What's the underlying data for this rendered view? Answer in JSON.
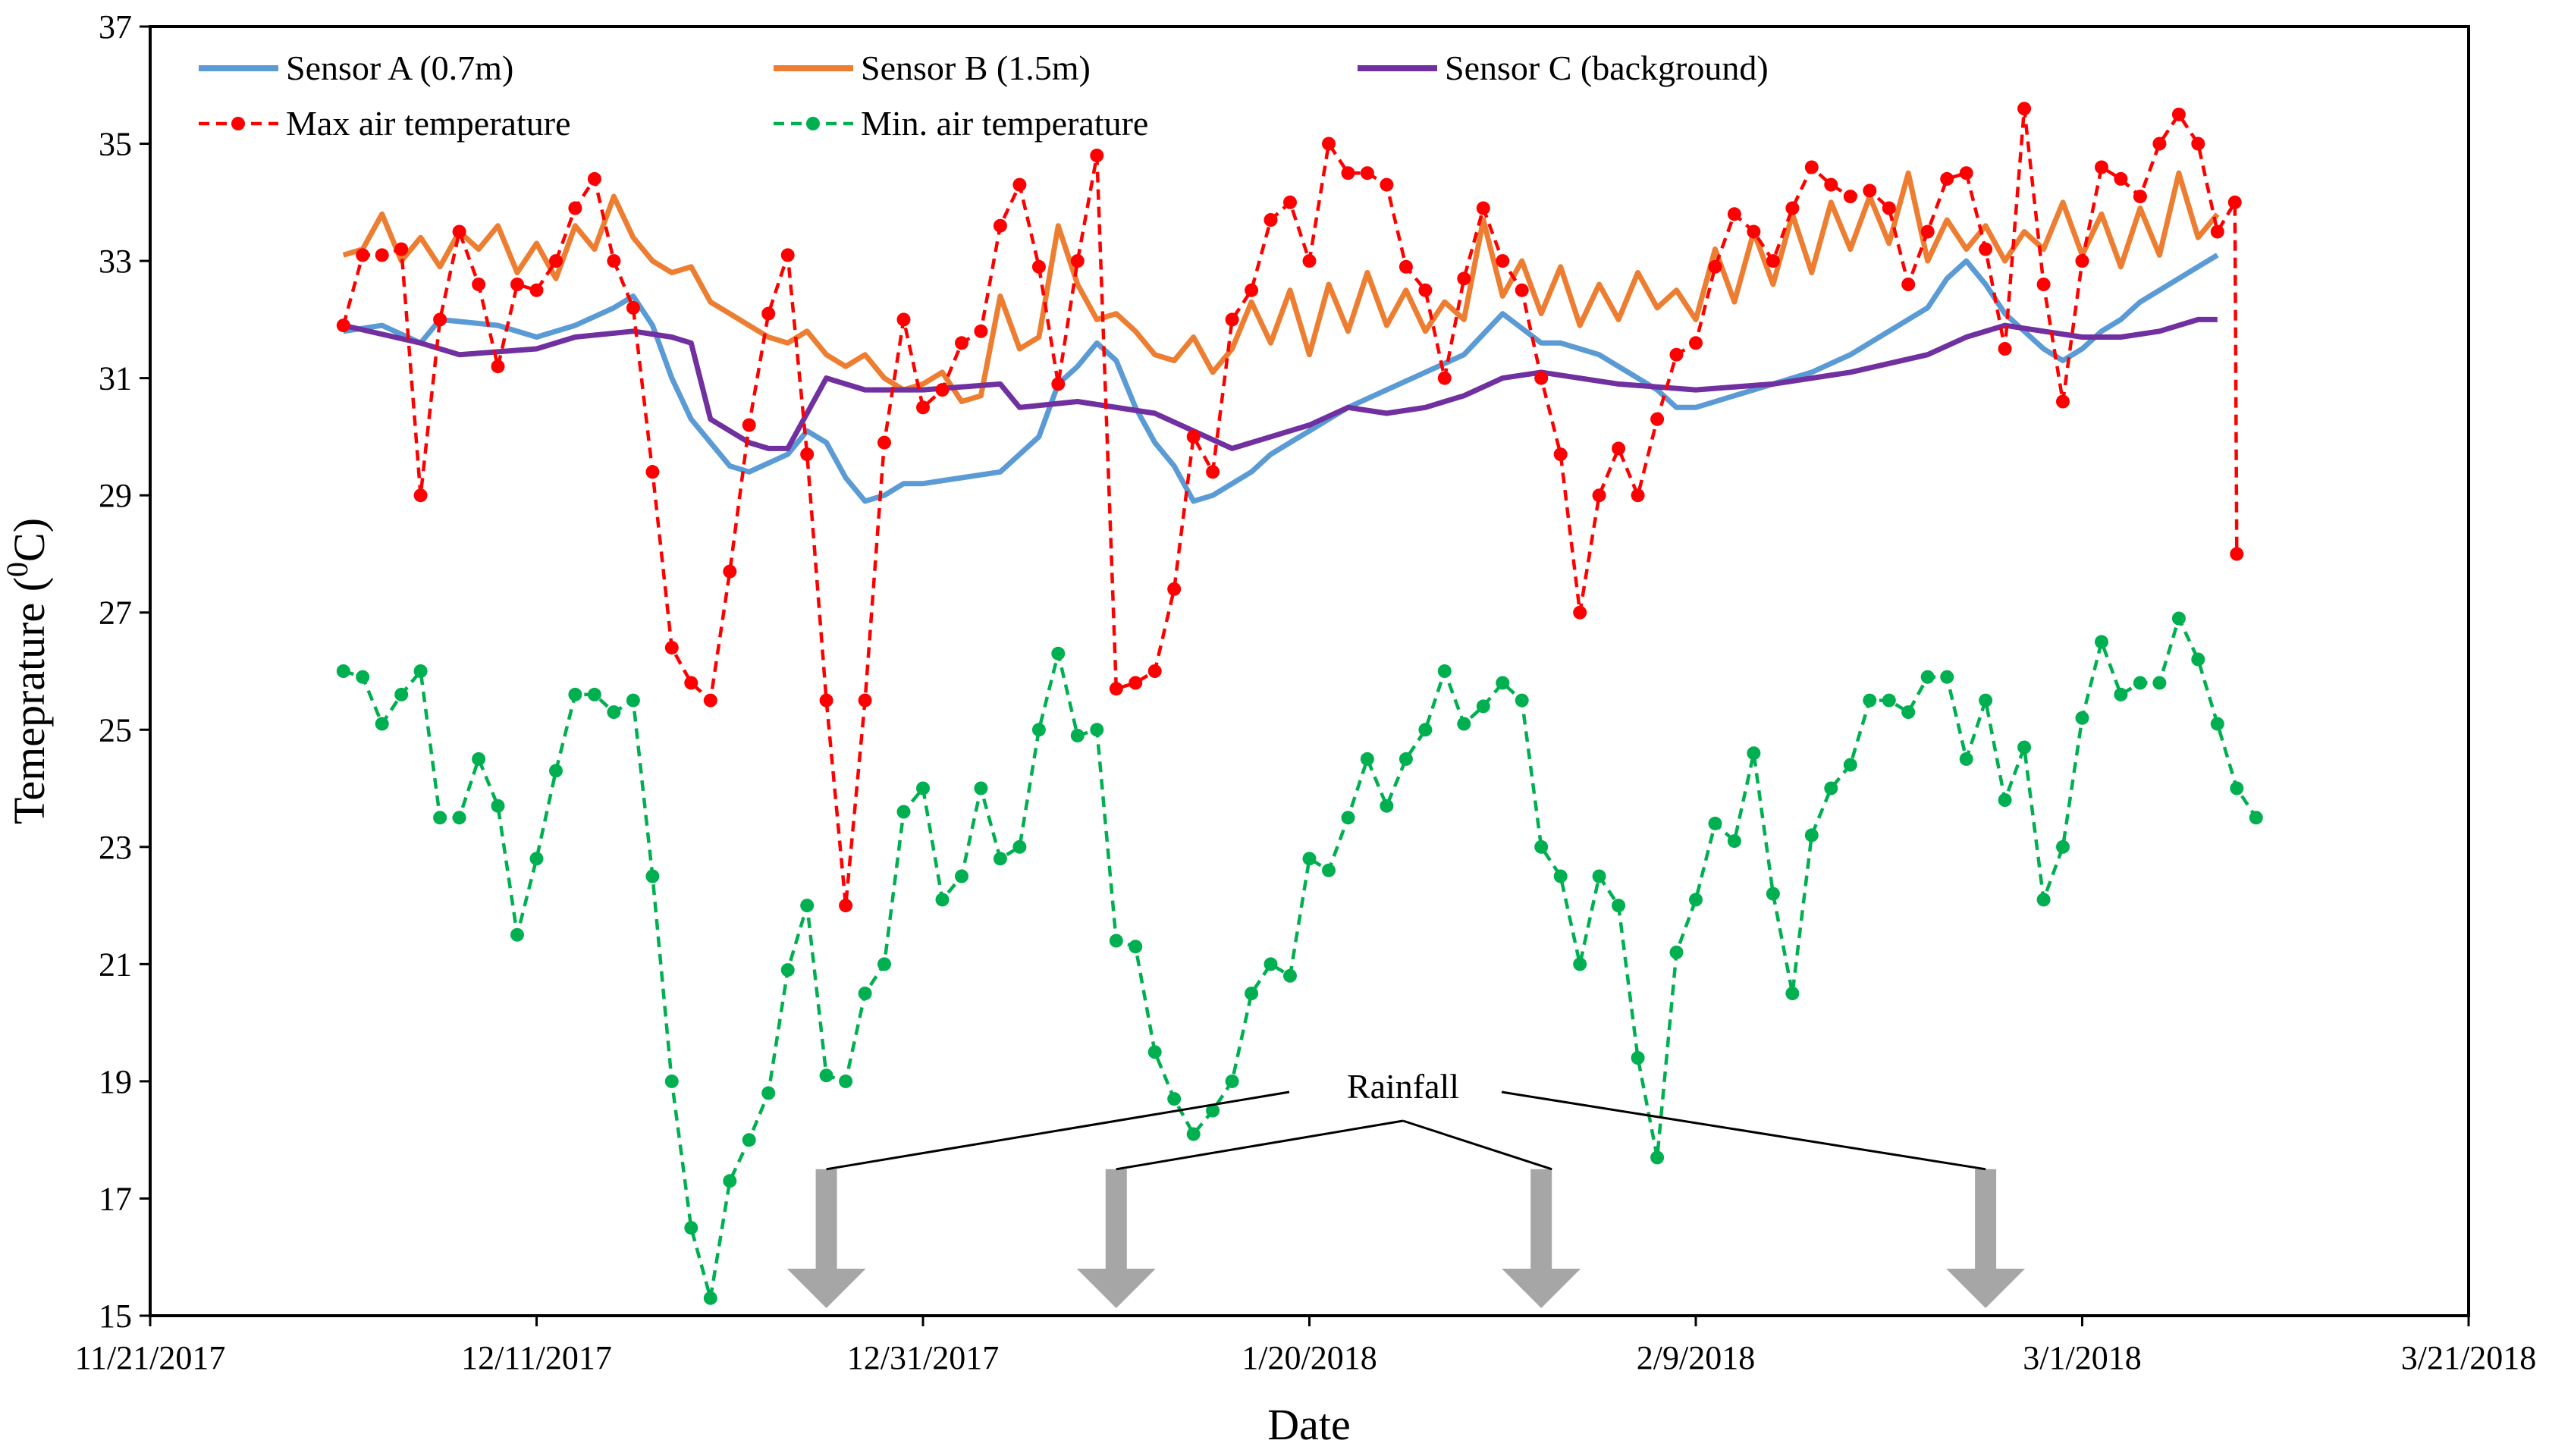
{
  "chart_data": {
    "type": "line",
    "title": "",
    "xlabel": "Date",
    "ylabel": "Temeprature (",
    "ylabel_sup": "0",
    "ylabel_tail": "C)",
    "xlim": [
      0,
      120
    ],
    "ylim": [
      15,
      37
    ],
    "x_ticks": [
      {
        "x": 0,
        "label": "11/21/2017"
      },
      {
        "x": 20,
        "label": "12/11/2017"
      },
      {
        "x": 40,
        "label": "12/31/2017"
      },
      {
        "x": 60,
        "label": "1/20/2018"
      },
      {
        "x": 80,
        "label": "2/9/2018"
      },
      {
        "x": 100,
        "label": "3/1/2018"
      },
      {
        "x": 120,
        "label": "3/21/2018"
      }
    ],
    "y_ticks": [
      15,
      17,
      19,
      21,
      23,
      25,
      27,
      29,
      31,
      33,
      35,
      37
    ],
    "grid": false,
    "legend": {
      "placement": "top-left"
    },
    "series": [
      {
        "name": "Sensor A (0.7m)",
        "color": "#5B9BD5",
        "style": "solid",
        "x": [
          10,
          12,
          14,
          15,
          18,
          20,
          22,
          24,
          25,
          26,
          27,
          28,
          29,
          30,
          31,
          33,
          34,
          35,
          36,
          37,
          38,
          39,
          40,
          42,
          44,
          46,
          47,
          48,
          49,
          50,
          51,
          52,
          53,
          54,
          55,
          56,
          57,
          58,
          59,
          60,
          62,
          64,
          66,
          68,
          70,
          72,
          73,
          74,
          75,
          76,
          77,
          78,
          79,
          80,
          82,
          84,
          86,
          88,
          90,
          92,
          93,
          94,
          95,
          96,
          97,
          98,
          99,
          100,
          101,
          102,
          103,
          104,
          105,
          106,
          107
        ],
        "values": [
          31.8,
          31.9,
          31.6,
          32.0,
          31.9,
          31.7,
          31.9,
          32.2,
          32.4,
          31.9,
          31.0,
          30.3,
          29.9,
          29.5,
          29.4,
          29.7,
          30.1,
          29.9,
          29.3,
          28.9,
          29.0,
          29.2,
          29.2,
          29.3,
          29.4,
          30.0,
          30.9,
          31.2,
          31.6,
          31.3,
          30.5,
          29.9,
          29.5,
          28.9,
          29.0,
          29.2,
          29.4,
          29.7,
          29.9,
          30.1,
          30.5,
          30.8,
          31.1,
          31.4,
          32.1,
          31.6,
          31.6,
          31.5,
          31.4,
          31.2,
          31.0,
          30.8,
          30.5,
          30.5,
          30.7,
          30.9,
          31.1,
          31.4,
          31.8,
          32.2,
          32.7,
          33.0,
          32.6,
          32.1,
          31.8,
          31.5,
          31.3,
          31.5,
          31.8,
          32.0,
          32.3,
          32.5,
          32.7,
          32.9,
          33.1
        ]
      },
      {
        "name": "Sensor B (1.5m)",
        "color": "#ED7D31",
        "style": "solid",
        "x": [
          10,
          11,
          12,
          13,
          14,
          15,
          16,
          17,
          18,
          19,
          20,
          21,
          22,
          23,
          24,
          25,
          26,
          27,
          28,
          29,
          30,
          31,
          32,
          33,
          34,
          35,
          36,
          37,
          38,
          39,
          40,
          41,
          42,
          43,
          44,
          45,
          46,
          47,
          48,
          49,
          50,
          51,
          52,
          53,
          54,
          55,
          56,
          57,
          58,
          59,
          60,
          61,
          62,
          63,
          64,
          65,
          66,
          67,
          68,
          69,
          70,
          71,
          72,
          73,
          74,
          75,
          76,
          77,
          78,
          79,
          80,
          81,
          82,
          83,
          84,
          85,
          86,
          87,
          88,
          89,
          90,
          91,
          92,
          93,
          94,
          95,
          96,
          97,
          98,
          99,
          100,
          101,
          102,
          103,
          104,
          105,
          106,
          107
        ],
        "values": [
          33.1,
          33.2,
          33.8,
          33.0,
          33.4,
          32.9,
          33.5,
          33.2,
          33.6,
          32.8,
          33.3,
          32.7,
          33.6,
          33.2,
          34.1,
          33.4,
          33.0,
          32.8,
          32.9,
          32.3,
          32.1,
          31.9,
          31.7,
          31.6,
          31.8,
          31.4,
          31.2,
          31.4,
          31.0,
          30.8,
          30.9,
          31.1,
          30.6,
          30.7,
          32.4,
          31.5,
          31.7,
          33.6,
          32.6,
          32.0,
          32.1,
          31.8,
          31.4,
          31.3,
          31.7,
          31.1,
          31.5,
          32.3,
          31.6,
          32.5,
          31.4,
          32.6,
          31.8,
          32.8,
          31.9,
          32.5,
          31.8,
          32.3,
          32.0,
          33.7,
          32.4,
          33.0,
          32.1,
          32.9,
          31.9,
          32.6,
          32.0,
          32.8,
          32.2,
          32.5,
          32.0,
          33.2,
          32.3,
          33.5,
          32.6,
          33.8,
          32.8,
          34.0,
          33.2,
          34.1,
          33.3,
          34.5,
          33.0,
          33.7,
          33.2,
          33.6,
          33.0,
          33.5,
          33.2,
          34.0,
          33.1,
          33.8,
          32.9,
          33.9,
          33.1,
          34.5,
          33.4,
          33.8
        ]
      },
      {
        "name": "Sensor C (background)",
        "color": "#7030A0",
        "style": "solid",
        "x": [
          10,
          14,
          16,
          20,
          22,
          25,
          27,
          28,
          29,
          31,
          32,
          33,
          35,
          37,
          40,
          44,
          45,
          48,
          52,
          56,
          60,
          62,
          64,
          66,
          68,
          70,
          72,
          76,
          80,
          84,
          88,
          92,
          94,
          96,
          98,
          100,
          102,
          104,
          106,
          107
        ],
        "values": [
          31.9,
          31.6,
          31.4,
          31.5,
          31.7,
          31.8,
          31.7,
          31.6,
          30.3,
          29.9,
          29.8,
          29.8,
          31.0,
          30.8,
          30.8,
          30.9,
          30.5,
          30.6,
          30.4,
          29.8,
          30.2,
          30.5,
          30.4,
          30.5,
          30.7,
          31.0,
          31.1,
          30.9,
          30.8,
          30.9,
          31.1,
          31.4,
          31.7,
          31.9,
          31.8,
          31.7,
          31.7,
          31.8,
          32.0,
          32.0
        ]
      },
      {
        "name": "Max air temperature",
        "color": "#FF0000",
        "style": "dashed-markers",
        "x": [
          10,
          11,
          12,
          13,
          14,
          15,
          16,
          17,
          18,
          19,
          20,
          21,
          22,
          23,
          24,
          25,
          26,
          27,
          28,
          29,
          30,
          31,
          32,
          33,
          34,
          35,
          36,
          37,
          38,
          39,
          40,
          41,
          42,
          43,
          44,
          45,
          46,
          47,
          48,
          49,
          50,
          51,
          52,
          53,
          54,
          55,
          56,
          57,
          58,
          59,
          60,
          61,
          62,
          63,
          64,
          65,
          66,
          67,
          68,
          69,
          70,
          71,
          72,
          73,
          74,
          75,
          76,
          77,
          78,
          79,
          80,
          81,
          82,
          83,
          84,
          85,
          86,
          87,
          88,
          89,
          90,
          91,
          92,
          93,
          94,
          95,
          96,
          97,
          98,
          99,
          100,
          101,
          102,
          103,
          104,
          105,
          106,
          107,
          108
        ],
        "values": [
          31.9,
          33.1,
          33.1,
          33.2,
          29.0,
          32.0,
          33.5,
          32.6,
          31.2,
          32.6,
          32.5,
          33.0,
          33.9,
          34.4,
          33.0,
          32.2,
          29.4,
          26.4,
          25.8,
          25.5,
          27.7,
          30.2,
          32.1,
          33.1,
          29.7,
          25.5,
          22.0,
          25.5,
          29.9,
          32.0,
          30.5,
          30.8,
          31.6,
          31.8,
          33.6,
          34.3,
          32.9,
          30.9,
          33.0,
          34.8,
          25.7,
          25.8,
          26.0,
          27.4,
          30.0,
          29.4,
          32.0,
          32.5,
          33.7,
          34.0,
          33.0,
          35.0,
          34.5,
          34.5,
          34.3,
          32.9,
          32.5,
          31.0,
          32.7,
          33.9,
          33.0,
          32.5,
          31.0,
          29.7,
          27.0,
          29.0,
          29.8,
          29.0,
          30.3,
          31.4,
          31.6,
          32.9,
          33.8,
          33.5,
          33.0,
          33.9,
          34.6,
          34.3,
          34.1,
          34.2,
          33.9,
          32.6,
          33.5,
          34.4,
          34.5,
          33.2,
          31.5,
          35.6,
          32.6,
          30.6,
          33.0,
          34.6,
          34.4,
          34.1,
          35.0,
          35.5,
          35.0,
          33.5,
          28.0
        ],
        "last_extra": 34.0
      },
      {
        "name": "Min. air temperature",
        "color": "#00B050",
        "style": "dashed-markers",
        "x": [
          10,
          11,
          12,
          13,
          14,
          15,
          16,
          17,
          18,
          19,
          20,
          21,
          22,
          23,
          24,
          25,
          26,
          27,
          28,
          29,
          30,
          31,
          32,
          33,
          34,
          35,
          36,
          37,
          38,
          39,
          40,
          41,
          42,
          43,
          44,
          45,
          46,
          47,
          48,
          49,
          50,
          51,
          52,
          53,
          54,
          55,
          56,
          57,
          58,
          59,
          60,
          61,
          62,
          63,
          64,
          65,
          66,
          67,
          68,
          69,
          70,
          71,
          72,
          73,
          74,
          75,
          76,
          77,
          78,
          79,
          80,
          81,
          82,
          83,
          84,
          85,
          86,
          87,
          88,
          89,
          90,
          91,
          92,
          93,
          94,
          95,
          96,
          97,
          98,
          99,
          100,
          101,
          102,
          103,
          104,
          105,
          106,
          107,
          108,
          109
        ],
        "values": [
          26.0,
          25.9,
          25.1,
          25.6,
          26.0,
          23.5,
          23.5,
          24.5,
          23.7,
          21.5,
          22.8,
          24.3,
          25.6,
          25.6,
          25.3,
          25.5,
          22.5,
          19.0,
          16.5,
          15.3,
          17.3,
          18.0,
          18.8,
          20.9,
          22.0,
          19.1,
          19.0,
          20.5,
          21.0,
          23.6,
          24.0,
          22.1,
          22.5,
          24.0,
          22.8,
          23.0,
          25.0,
          26.3,
          24.9,
          25.0,
          21.4,
          21.3,
          19.5,
          18.7,
          18.1,
          18.5,
          19.0,
          20.5,
          21.0,
          20.8,
          22.8,
          22.6,
          23.5,
          24.5,
          23.7,
          24.5,
          25.0,
          26.0,
          25.1,
          25.4,
          25.8,
          25.5,
          23.0,
          22.5,
          21.0,
          22.5,
          22.0,
          19.4,
          17.7,
          21.2,
          22.1,
          23.4,
          23.1,
          24.6,
          22.2,
          20.5,
          23.2,
          24.0,
          24.4,
          25.5,
          25.5,
          25.3,
          25.9,
          25.9,
          24.5,
          25.5,
          23.8,
          24.7,
          22.1,
          23.0,
          25.2,
          26.5,
          25.6,
          25.8,
          25.8,
          26.9,
          26.2,
          25.1,
          24.0,
          23.5
        ]
      }
    ],
    "annotations": {
      "label": "Rainfall",
      "arrows_x": [
        35,
        50,
        72,
        95
      ],
      "arrow_top_y": 17.5,
      "arrow_bottom_y": 15.0,
      "arrow_color": "#A6A6A6"
    }
  }
}
